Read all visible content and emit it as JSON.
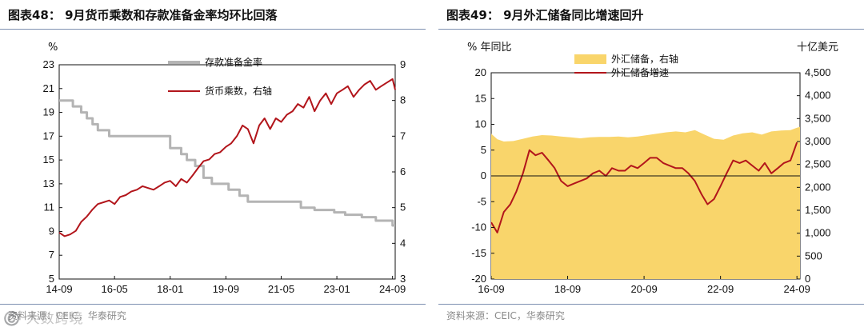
{
  "charts": [
    {
      "id": "left",
      "title": "图表48： 9月货币乘数和存款准备金率均环比回落",
      "source": "资料来源：CEIC，华泰研究",
      "chart_data": {
        "type": "line",
        "ylabel_left": "%",
        "ylabel_right": "",
        "xlim": [
          2014.67,
          2024.75
        ],
        "x_ticks": [
          {
            "label": "14-09",
            "x": 2014.67
          },
          {
            "label": "16-05",
            "x": 2016.33
          },
          {
            "label": "18-01",
            "x": 2018.0
          },
          {
            "label": "19-09",
            "x": 2019.67
          },
          {
            "label": "21-05",
            "x": 2021.33
          },
          {
            "label": "23-01",
            "x": 2023.0
          },
          {
            "label": "24-09",
            "x": 2024.67
          }
        ],
        "y_left": {
          "min": 5,
          "max": 23,
          "ticks": [
            5,
            7,
            9,
            11,
            13,
            15,
            17,
            19,
            21,
            23
          ]
        },
        "y_right": {
          "min": 3,
          "max": 9,
          "ticks": [
            3,
            4,
            5,
            6,
            7,
            8,
            9
          ]
        },
        "series": [
          {
            "name": "存款准备金率",
            "axis": "left",
            "color": "#b4b4b4",
            "step": true,
            "x": [
              2014.67,
              2015.08,
              2015.33,
              2015.5,
              2015.67,
              2015.83,
              2016.17,
              2017.0,
              2018.0,
              2018.33,
              2018.5,
              2018.75,
              2019.0,
              2019.25,
              2019.75,
              2020.08,
              2020.33,
              2021.5,
              2021.92,
              2022.33,
              2022.92,
              2023.25,
              2023.75,
              2024.17,
              2024.67,
              2024.75
            ],
            "y": [
              20.0,
              19.5,
              19.0,
              18.5,
              18.0,
              17.5,
              17.0,
              17.0,
              16.0,
              15.5,
              15.0,
              14.5,
              13.5,
              13.0,
              12.5,
              12.0,
              11.5,
              11.5,
              11.0,
              10.8,
              10.6,
              10.4,
              10.2,
              9.9,
              9.5,
              9.5
            ]
          },
          {
            "name": "货币乘数，右轴",
            "axis": "right",
            "color": "#b2151b",
            "x": [
              2014.67,
              2014.83,
              2015.0,
              2015.17,
              2015.33,
              2015.5,
              2015.67,
              2015.83,
              2016.0,
              2016.17,
              2016.33,
              2016.5,
              2016.67,
              2016.83,
              2017.0,
              2017.17,
              2017.33,
              2017.5,
              2017.67,
              2017.83,
              2018.0,
              2018.17,
              2018.33,
              2018.5,
              2018.67,
              2018.83,
              2019.0,
              2019.17,
              2019.33,
              2019.5,
              2019.67,
              2019.83,
              2020.0,
              2020.17,
              2020.33,
              2020.5,
              2020.67,
              2020.83,
              2021.0,
              2021.17,
              2021.33,
              2021.5,
              2021.67,
              2021.83,
              2022.0,
              2022.17,
              2022.33,
              2022.5,
              2022.67,
              2022.83,
              2023.0,
              2023.17,
              2023.33,
              2023.5,
              2023.67,
              2023.83,
              2024.0,
              2024.17,
              2024.33,
              2024.5,
              2024.67,
              2024.75
            ],
            "y": [
              4.3,
              4.2,
              4.25,
              4.35,
              4.6,
              4.75,
              4.95,
              5.1,
              5.15,
              5.2,
              5.1,
              5.3,
              5.35,
              5.45,
              5.5,
              5.6,
              5.55,
              5.5,
              5.6,
              5.7,
              5.75,
              5.6,
              5.8,
              5.7,
              5.9,
              6.1,
              6.3,
              6.35,
              6.5,
              6.55,
              6.7,
              6.8,
              7.0,
              7.3,
              7.2,
              6.8,
              7.3,
              7.5,
              7.2,
              7.5,
              7.4,
              7.6,
              7.7,
              7.9,
              7.8,
              8.1,
              7.7,
              8.0,
              8.2,
              7.9,
              8.2,
              8.3,
              8.4,
              8.1,
              8.3,
              8.45,
              8.55,
              8.3,
              8.4,
              8.5,
              8.6,
              8.3
            ]
          }
        ],
        "legend": {
          "position": "top-center"
        }
      }
    },
    {
      "id": "right",
      "title": "图表49： 9月外汇储备同比增速回升",
      "source": "资料来源：CEIC，华泰研究",
      "chart_data": {
        "type": "line",
        "ylabel_left": "% 年同比",
        "ylabel_right": "十亿美元",
        "xlim": [
          2016.67,
          2024.75
        ],
        "x_ticks": [
          {
            "label": "16-09",
            "x": 2016.67
          },
          {
            "label": "18-09",
            "x": 2018.67
          },
          {
            "label": "20-09",
            "x": 2020.67
          },
          {
            "label": "22-09",
            "x": 2022.67
          },
          {
            "label": "24-09",
            "x": 2024.67
          }
        ],
        "y_left": {
          "min": -20,
          "max": 20,
          "ticks": [
            -20,
            -15,
            -10,
            -5,
            0,
            5,
            10,
            15,
            20
          ]
        },
        "y_right": {
          "min": 0,
          "max": 4500,
          "ticks": [
            0,
            500,
            1000,
            1500,
            2000,
            2500,
            3000,
            3500,
            4000,
            4500
          ],
          "tick_labels": [
            "0",
            "500",
            "1,000",
            "1,500",
            "2,000",
            "2,500",
            "3,000",
            "3,500",
            "4,000",
            "4,500"
          ]
        },
        "series": [
          {
            "name": "外汇储备，右轴",
            "axis": "right",
            "type": "area",
            "color": "#f9d56b",
            "x": [
              2016.67,
              2016.83,
              2017.0,
              2017.25,
              2017.5,
              2017.75,
              2018.0,
              2018.25,
              2018.5,
              2018.75,
              2019.0,
              2019.25,
              2019.5,
              2019.75,
              2020.0,
              2020.25,
              2020.5,
              2020.75,
              2021.0,
              2021.25,
              2021.5,
              2021.75,
              2022.0,
              2022.25,
              2022.5,
              2022.75,
              2023.0,
              2023.25,
              2023.5,
              2023.75,
              2024.0,
              2024.25,
              2024.5,
              2024.67,
              2024.75
            ],
            "y": [
              3170,
              3050,
              3000,
              3010,
              3060,
              3110,
              3140,
              3130,
              3110,
              3090,
              3070,
              3090,
              3100,
              3100,
              3110,
              3090,
              3110,
              3140,
              3170,
              3200,
              3220,
              3200,
              3250,
              3150,
              3060,
              3040,
              3130,
              3180,
              3200,
              3150,
              3220,
              3240,
              3250,
              3300,
              3320
            ]
          },
          {
            "name": "外汇储备增速",
            "axis": "left",
            "color": "#b2151b",
            "x": [
              2016.67,
              2016.83,
              2017.0,
              2017.17,
              2017.33,
              2017.5,
              2017.67,
              2017.83,
              2018.0,
              2018.17,
              2018.33,
              2018.5,
              2018.67,
              2018.83,
              2019.0,
              2019.17,
              2019.33,
              2019.5,
              2019.67,
              2019.83,
              2020.0,
              2020.17,
              2020.33,
              2020.5,
              2020.67,
              2020.83,
              2021.0,
              2021.17,
              2021.33,
              2021.5,
              2021.67,
              2021.83,
              2022.0,
              2022.17,
              2022.33,
              2022.5,
              2022.67,
              2022.83,
              2023.0,
              2023.17,
              2023.33,
              2023.5,
              2023.67,
              2023.83,
              2024.0,
              2024.17,
              2024.33,
              2024.5,
              2024.67
            ],
            "y": [
              -9.0,
              -11.0,
              -7.0,
              -5.5,
              -3.0,
              0.5,
              5.0,
              4.0,
              4.5,
              3.0,
              1.5,
              -1.0,
              -2.0,
              -1.5,
              -1.0,
              -0.5,
              0.5,
              1.0,
              0.0,
              1.5,
              1.0,
              1.0,
              2.0,
              1.5,
              2.5,
              3.5,
              3.5,
              2.5,
              2.0,
              1.5,
              1.5,
              0.5,
              -1.0,
              -3.5,
              -5.5,
              -4.5,
              -2.0,
              0.5,
              3.0,
              2.5,
              3.0,
              2.0,
              1.0,
              2.5,
              0.5,
              1.5,
              2.5,
              3.0,
              6.5
            ]
          }
        ],
        "legend": {
          "position": "top-center"
        }
      }
    }
  ],
  "watermark": "©️ 大数跨境"
}
